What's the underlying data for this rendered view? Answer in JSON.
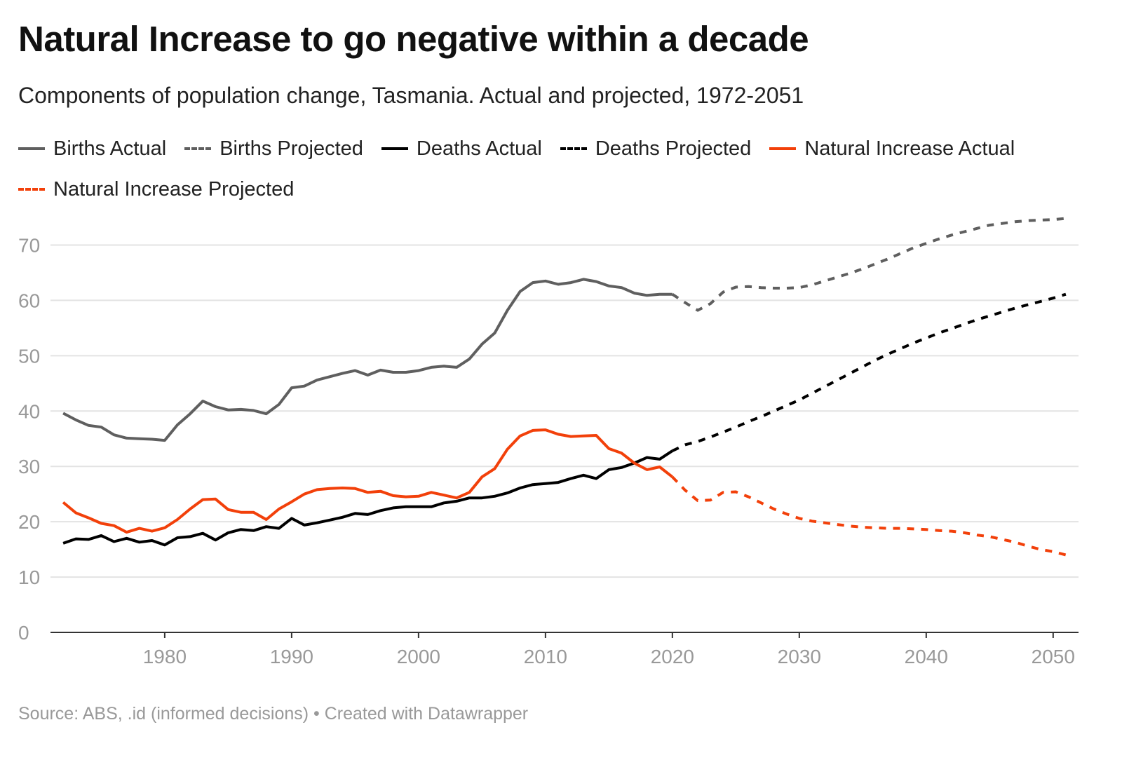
{
  "header": {
    "title": "Natural Increase to go negative within a decade",
    "subtitle": "Components of population change, Tasmania. Actual and projected, 1972-2051"
  },
  "footer": {
    "source": "Source: ABS, .id (informed decisions) • Created with Datawrapper"
  },
  "legend": [
    {
      "label": "Births Actual",
      "color": "#5f5f5f",
      "style": "solid"
    },
    {
      "label": "Births Projected",
      "color": "#5f5f5f",
      "style": "dashed"
    },
    {
      "label": "Deaths Actual",
      "color": "#000000",
      "style": "solid"
    },
    {
      "label": "Deaths Projected",
      "color": "#000000",
      "style": "dashed"
    },
    {
      "label": "Natural Increase Actual",
      "color": "#f2400a",
      "style": "solid"
    },
    {
      "label": "Natural Increase Projected",
      "color": "#f2400a",
      "style": "dashed"
    }
  ],
  "chart_data": {
    "type": "line",
    "title": "Natural Increase to go negative within a decade",
    "subtitle": "Components of population change, Tasmania. Actual and projected, 1972-2051",
    "xlabel": "",
    "ylabel": "",
    "xlim": [
      1971,
      2052
    ],
    "ylim": [
      0,
      75
    ],
    "x_ticks": [
      1980,
      1990,
      2000,
      2010,
      2020,
      2030,
      2040,
      2050
    ],
    "y_ticks": [
      0,
      10,
      20,
      30,
      40,
      50,
      60,
      70
    ],
    "grid": true,
    "legend_position": "top",
    "series": [
      {
        "name": "Births Actual",
        "color": "#5f5f5f",
        "dashed": false,
        "x": [
          1972,
          1973,
          1974,
          1975,
          1976,
          1977,
          1978,
          1979,
          1980,
          1981,
          1982,
          1983,
          1984,
          1985,
          1986,
          1987,
          1988,
          1989,
          1990,
          1991,
          1992,
          1993,
          1994,
          1995,
          1996,
          1997,
          1998,
          1999,
          2000,
          2001,
          2002,
          2003,
          2004,
          2005,
          2006,
          2007,
          2008,
          2009,
          2010,
          2011,
          2012,
          2013,
          2014,
          2015,
          2016,
          2017,
          2018,
          2019,
          2020
        ],
        "values": [
          39.6,
          38.4,
          37.4,
          37.1,
          35.7,
          35.1,
          35.0,
          34.9,
          34.7,
          37.5,
          39.5,
          41.8,
          40.8,
          40.2,
          40.3,
          40.1,
          39.5,
          41.2,
          44.2,
          44.5,
          45.6,
          46.2,
          46.8,
          47.3,
          46.5,
          47.4,
          47.0,
          47.0,
          47.3,
          47.9,
          48.1,
          47.9,
          49.4,
          52.1,
          54.1,
          58.2,
          61.6,
          63.2,
          63.5,
          62.9,
          63.2,
          63.8,
          63.4,
          62.6,
          62.3,
          61.3,
          60.9,
          61.1,
          61.1
        ]
      },
      {
        "name": "Births Projected",
        "color": "#5f5f5f",
        "dashed": true,
        "x": [
          2020,
          2021,
          2022,
          2023,
          2024,
          2025,
          2026,
          2027,
          2028,
          2029,
          2030,
          2031,
          2032,
          2033,
          2034,
          2035,
          2036,
          2037,
          2038,
          2039,
          2040,
          2041,
          2042,
          2043,
          2044,
          2045,
          2046,
          2047,
          2048,
          2049,
          2050,
          2051
        ],
        "values": [
          61.1,
          59.6,
          58.2,
          59.4,
          61.5,
          62.4,
          62.5,
          62.3,
          62.2,
          62.2,
          62.3,
          62.8,
          63.5,
          64.2,
          64.9,
          65.7,
          66.6,
          67.5,
          68.5,
          69.5,
          70.3,
          71.1,
          71.8,
          72.4,
          73.0,
          73.6,
          73.9,
          74.2,
          74.4,
          74.5,
          74.6,
          74.8
        ]
      },
      {
        "name": "Deaths Actual",
        "color": "#000000",
        "dashed": false,
        "x": [
          1972,
          1973,
          1974,
          1975,
          1976,
          1977,
          1978,
          1979,
          1980,
          1981,
          1982,
          1983,
          1984,
          1985,
          1986,
          1987,
          1988,
          1989,
          1990,
          1991,
          1992,
          1993,
          1994,
          1995,
          1996,
          1997,
          1998,
          1999,
          2000,
          2001,
          2002,
          2003,
          2004,
          2005,
          2006,
          2007,
          2008,
          2009,
          2010,
          2011,
          2012,
          2013,
          2014,
          2015,
          2016,
          2017,
          2018,
          2019,
          2020
        ],
        "values": [
          16.1,
          16.9,
          16.8,
          17.5,
          16.4,
          17.0,
          16.3,
          16.6,
          15.8,
          17.1,
          17.3,
          17.9,
          16.7,
          18.0,
          18.6,
          18.4,
          19.1,
          18.8,
          20.6,
          19.4,
          19.8,
          20.3,
          20.8,
          21.5,
          21.3,
          22.0,
          22.5,
          22.7,
          22.7,
          22.7,
          23.4,
          23.7,
          24.3,
          24.3,
          24.6,
          25.2,
          26.1,
          26.7,
          26.9,
          27.1,
          27.8,
          28.4,
          27.8,
          29.4,
          29.8,
          30.6,
          31.6,
          31.3,
          32.8
        ]
      },
      {
        "name": "Deaths Projected",
        "color": "#000000",
        "dashed": true,
        "x": [
          2020,
          2021,
          2022,
          2023,
          2024,
          2025,
          2026,
          2027,
          2028,
          2029,
          2030,
          2031,
          2032,
          2033,
          2034,
          2035,
          2036,
          2037,
          2038,
          2039,
          2040,
          2041,
          2042,
          2043,
          2044,
          2045,
          2046,
          2047,
          2048,
          2049,
          2050,
          2051
        ],
        "values": [
          32.8,
          33.9,
          34.5,
          35.3,
          36.2,
          37.1,
          38.1,
          39.0,
          40.0,
          41.0,
          42.0,
          43.2,
          44.4,
          45.6,
          46.8,
          48.0,
          49.2,
          50.3,
          51.3,
          52.3,
          53.2,
          54.1,
          54.9,
          55.7,
          56.5,
          57.2,
          57.9,
          58.6,
          59.2,
          59.8,
          60.4,
          61.1
        ]
      },
      {
        "name": "Natural Increase Actual",
        "color": "#f2400a",
        "dashed": false,
        "x": [
          1972,
          1973,
          1974,
          1975,
          1976,
          1977,
          1978,
          1979,
          1980,
          1981,
          1982,
          1983,
          1984,
          1985,
          1986,
          1987,
          1988,
          1989,
          1990,
          1991,
          1992,
          1993,
          1994,
          1995,
          1996,
          1997,
          1998,
          1999,
          2000,
          2001,
          2002,
          2003,
          2004,
          2005,
          2006,
          2007,
          2008,
          2009,
          2010,
          2011,
          2012,
          2013,
          2014,
          2015,
          2016,
          2017,
          2018,
          2019,
          2020
        ],
        "values": [
          23.5,
          21.6,
          20.7,
          19.7,
          19.3,
          18.1,
          18.8,
          18.3,
          18.9,
          20.4,
          22.3,
          24.0,
          24.1,
          22.2,
          21.7,
          21.7,
          20.4,
          22.3,
          23.6,
          25.0,
          25.8,
          26.0,
          26.1,
          26.0,
          25.3,
          25.5,
          24.7,
          24.5,
          24.6,
          25.3,
          24.8,
          24.3,
          25.3,
          28.1,
          29.6,
          33.1,
          35.5,
          36.5,
          36.6,
          35.8,
          35.4,
          35.5,
          35.6,
          33.2,
          32.4,
          30.6,
          29.4,
          29.9,
          28.1
        ]
      },
      {
        "name": "Natural Increase Projected",
        "color": "#f2400a",
        "dashed": true,
        "x": [
          2020,
          2021,
          2022,
          2023,
          2024,
          2025,
          2026,
          2027,
          2028,
          2029,
          2030,
          2031,
          2032,
          2033,
          2034,
          2035,
          2036,
          2037,
          2038,
          2039,
          2040,
          2041,
          2042,
          2043,
          2044,
          2045,
          2046,
          2047,
          2048,
          2049,
          2050,
          2051
        ],
        "values": [
          28.1,
          25.7,
          23.8,
          23.9,
          25.3,
          25.4,
          24.5,
          23.4,
          22.3,
          21.4,
          20.6,
          20.1,
          19.8,
          19.5,
          19.2,
          19.0,
          18.9,
          18.8,
          18.8,
          18.7,
          18.6,
          18.4,
          18.3,
          18.0,
          17.6,
          17.3,
          16.8,
          16.3,
          15.6,
          15.0,
          14.6,
          14.0
        ]
      }
    ]
  }
}
